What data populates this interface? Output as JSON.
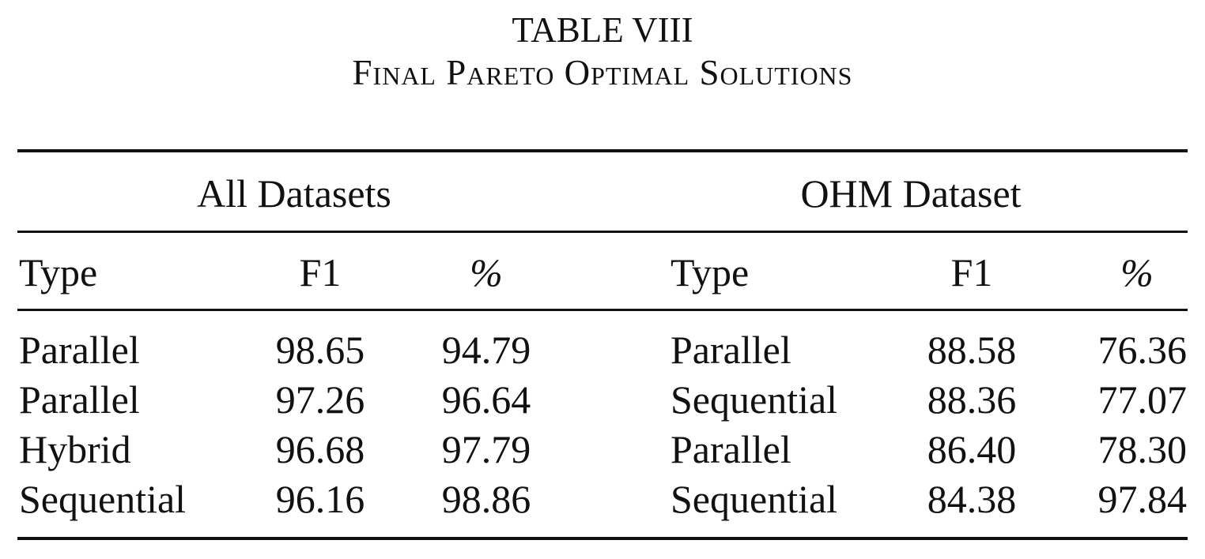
{
  "title": "TABLE VIII",
  "subtitle": "Final Pareto Optimal Solutions",
  "table": {
    "groups": [
      "All Datasets",
      "OHM Dataset"
    ],
    "columns": [
      "Type",
      "F1",
      "%",
      "Type",
      "F1",
      "%"
    ],
    "rows": [
      [
        "Parallel",
        "98.65",
        "94.79",
        "Parallel",
        "88.58",
        "76.36"
      ],
      [
        "Parallel",
        "97.26",
        "96.64",
        "Sequential",
        "88.36",
        "77.07"
      ],
      [
        "Hybrid",
        "96.68",
        "97.79",
        "Parallel",
        "86.40",
        "78.30"
      ],
      [
        "Sequential",
        "96.16",
        "98.86",
        "Sequential",
        "84.38",
        "97.84"
      ]
    ]
  }
}
